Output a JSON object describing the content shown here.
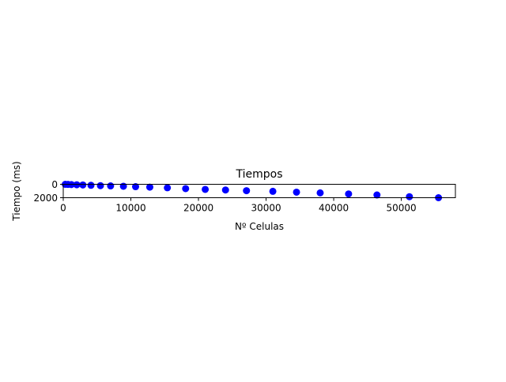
{
  "chart_data": {
    "type": "scatter",
    "title": "Tiempos",
    "xlabel": "Nº Celulas",
    "ylabel": "Tiempo (ms)",
    "xlim": [
      0,
      58000
    ],
    "ylim": [
      0,
      2000
    ],
    "y_inverted": true,
    "x_ticks": [
      0,
      10000,
      20000,
      30000,
      40000,
      50000
    ],
    "x_tick_labels": [
      "0",
      "10000",
      "20000",
      "30000",
      "40000",
      "50000"
    ],
    "y_ticks": [
      0,
      2000
    ],
    "y_tick_labels": [
      "0",
      "2000"
    ],
    "grid": false,
    "legend": "none",
    "marker_color": "#0000ff",
    "x": [
      300,
      700,
      1200,
      2000,
      2900,
      4100,
      5500,
      7000,
      8900,
      10700,
      12800,
      15400,
      18100,
      21000,
      24000,
      27100,
      31000,
      34500,
      38000,
      42200,
      46400,
      51200,
      55500
    ],
    "y": [
      5,
      20,
      40,
      70,
      100,
      150,
      200,
      240,
      290,
      360,
      420,
      520,
      640,
      760,
      850,
      950,
      1050,
      1170,
      1280,
      1440,
      1590,
      1850,
      2000
    ]
  }
}
